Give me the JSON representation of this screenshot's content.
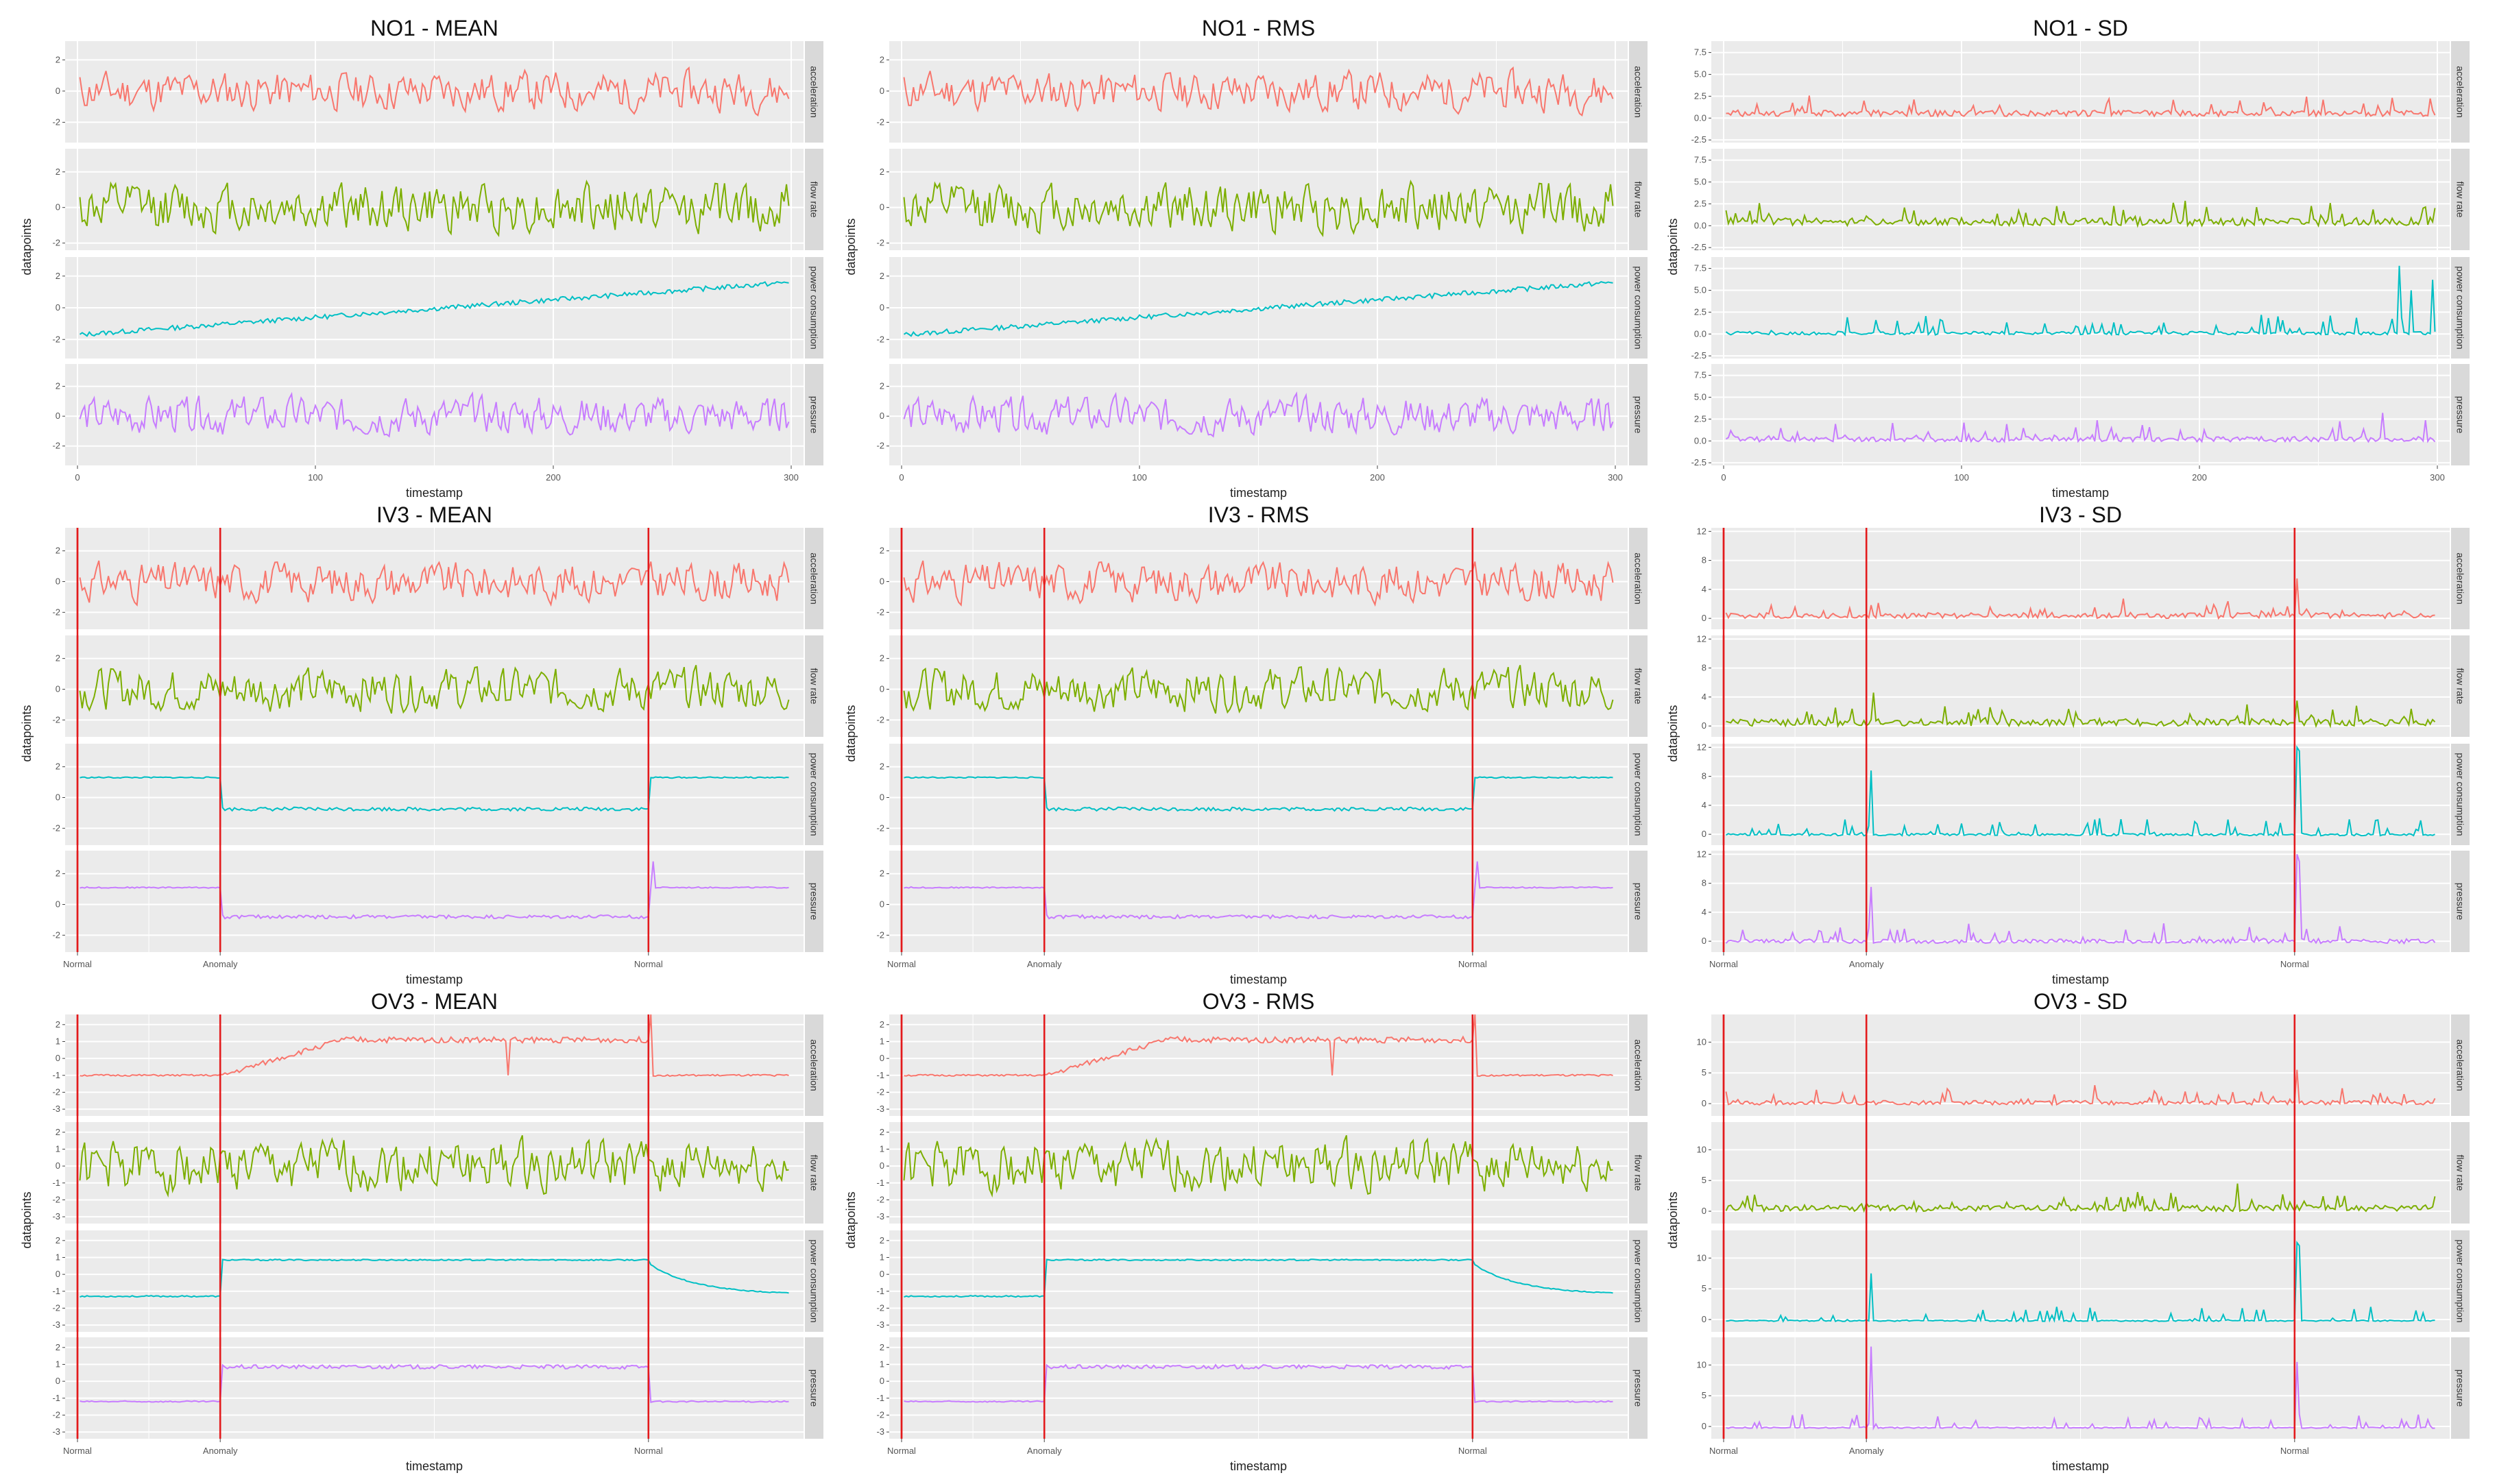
{
  "figure": {
    "xlabel": "timestamp",
    "ylabel": "datapoints",
    "facets": [
      "acceleration",
      "flow rate",
      "power consumption",
      "pressure"
    ],
    "colors": {
      "acceleration": "#F8766D",
      "flow rate": "#7CAE00",
      "power consumption": "#00BFC4",
      "pressure": "#C77CFF",
      "anomaly_line": "#E31A1C",
      "panel_bg": "#EBEBEB",
      "strip_bg": "#D9D9D9",
      "grid": "#FFFFFF"
    }
  },
  "chart_data": [
    {
      "type": "line",
      "title": "NO1 - MEAN",
      "xlabel": "timestamp",
      "ylabel": "datapoints",
      "xlim": [
        0,
        300
      ],
      "xticks": [
        "0",
        "100",
        "200",
        "300"
      ],
      "facet_ylims": [
        [
          -3.3,
          3.2
        ],
        [
          -2.4,
          3.3
        ],
        [
          -3.2,
          3.2
        ],
        [
          -3.3,
          3.5
        ]
      ],
      "facet_yticks": [
        [
          "-2",
          "0",
          "2"
        ],
        [
          "-2",
          "0",
          "2"
        ],
        [
          "-2",
          "0",
          "2"
        ],
        [
          "-2",
          "0",
          "2"
        ]
      ],
      "series": [
        {
          "name": "acceleration",
          "pattern": "noise",
          "amp": 1.0,
          "base": 0,
          "values_seed": 11
        },
        {
          "name": "flow rate",
          "pattern": "noise",
          "amp": 1.1,
          "base": 0,
          "values_seed": 12
        },
        {
          "name": "power consumption",
          "pattern": "trend",
          "y_start": -1.7,
          "y_end": 1.6,
          "values_seed": 13
        },
        {
          "name": "pressure",
          "pattern": "noise",
          "amp": 1.0,
          "base": 0,
          "values_seed": 14
        }
      ]
    },
    {
      "type": "line",
      "title": "NO1 - RMS",
      "xlabel": "timestamp",
      "ylabel": "datapoints",
      "xlim": [
        0,
        300
      ],
      "xticks": [
        "0",
        "100",
        "200",
        "300"
      ],
      "facet_ylims": [
        [
          -3.3,
          3.2
        ],
        [
          -2.4,
          3.3
        ],
        [
          -3.2,
          3.2
        ],
        [
          -3.3,
          3.5
        ]
      ],
      "facet_yticks": [
        [
          "-2",
          "0",
          "2"
        ],
        [
          "-2",
          "0",
          "2"
        ],
        [
          "-2",
          "0",
          "2"
        ],
        [
          "-2",
          "0",
          "2"
        ]
      ],
      "series": [
        {
          "name": "acceleration",
          "pattern": "noise",
          "amp": 1.0,
          "base": 0,
          "values_seed": 11
        },
        {
          "name": "flow rate",
          "pattern": "noise",
          "amp": 1.1,
          "base": 0,
          "values_seed": 12
        },
        {
          "name": "power consumption",
          "pattern": "trend",
          "y_start": -1.7,
          "y_end": 1.6,
          "values_seed": 13
        },
        {
          "name": "pressure",
          "pattern": "noise",
          "amp": 1.0,
          "base": 0,
          "values_seed": 14
        }
      ]
    },
    {
      "type": "line",
      "title": "NO1 - SD",
      "xlabel": "timestamp",
      "ylabel": "datapoints",
      "xlim": [
        0,
        300
      ],
      "xticks": [
        "0",
        "100",
        "200",
        "300"
      ],
      "facet_ylims": [
        [
          -2.8,
          8.8
        ],
        [
          -2.8,
          8.8
        ],
        [
          -2.8,
          8.8
        ],
        [
          -2.8,
          8.8
        ]
      ],
      "facet_yticks": [
        [
          "-2.5",
          "0.0",
          "2.5",
          "5.0",
          "7.5"
        ],
        [
          "-2.5",
          "0.0",
          "2.5",
          "5.0",
          "7.5"
        ],
        [
          "-2.5",
          "0.0",
          "2.5",
          "5.0",
          "7.5"
        ],
        [
          "-2.5",
          "0.0",
          "2.5",
          "5.0",
          "7.5"
        ]
      ],
      "series": [
        {
          "name": "acceleration",
          "pattern": "sd",
          "amp": 0.7,
          "base": 0.5,
          "values_seed": 21
        },
        {
          "name": "flow rate",
          "pattern": "sd",
          "amp": 0.9,
          "base": 0.3,
          "values_seed": 22
        },
        {
          "name": "power consumption",
          "pattern": "sd",
          "amp": 0.4,
          "base": 0.2,
          "values_seed": 23,
          "spikes": [
            [
              283,
              7.8
            ],
            [
              288,
              5.0
            ],
            [
              297,
              6.2
            ]
          ]
        },
        {
          "name": "pressure",
          "pattern": "sd",
          "amp": 0.6,
          "base": 0.2,
          "values_seed": 24,
          "spikes": [
            [
              276,
              3.2
            ]
          ]
        }
      ]
    },
    {
      "type": "line",
      "title": "IV3 - MEAN",
      "xlabel": "timestamp",
      "ylabel": "datapoints",
      "xlim": [
        0,
        300
      ],
      "xticks": [
        "Normal",
        "Anomaly",
        "Normal"
      ],
      "xtick_values": [
        0,
        60,
        240
      ],
      "anomaly_lines": [
        0,
        60,
        240
      ],
      "facet_ylims": [
        [
          -3.1,
          3.5
        ],
        [
          -3.1,
          3.5
        ],
        [
          -3.1,
          3.5
        ],
        [
          -3.1,
          3.5
        ]
      ],
      "facet_yticks": [
        [
          "-2",
          "0",
          "2"
        ],
        [
          "-2",
          "0",
          "2"
        ],
        [
          "-2",
          "0",
          "2"
        ],
        [
          "-2",
          "0",
          "2"
        ]
      ],
      "series": [
        {
          "name": "acceleration",
          "pattern": "noise",
          "amp": 1.0,
          "base": 0,
          "values_seed": 31
        },
        {
          "name": "flow rate",
          "pattern": "noise",
          "amp": 1.1,
          "base": 0,
          "values_seed": 32
        },
        {
          "name": "power consumption",
          "pattern": "step",
          "levels": [
            1.3,
            -0.75,
            1.3
          ],
          "values_seed": 33
        },
        {
          "name": "pressure",
          "pattern": "step",
          "levels": [
            1.1,
            -0.8,
            1.1
          ],
          "values_seed": 34,
          "spikes": [
            [
              241,
              2.8
            ]
          ]
        }
      ]
    },
    {
      "type": "line",
      "title": "IV3 - RMS",
      "xlabel": "timestamp",
      "ylabel": "datapoints",
      "xlim": [
        0,
        300
      ],
      "xticks": [
        "Normal",
        "Anomaly",
        "Normal"
      ],
      "xtick_values": [
        0,
        60,
        240
      ],
      "anomaly_lines": [
        0,
        60,
        240
      ],
      "facet_ylims": [
        [
          -3.1,
          3.5
        ],
        [
          -3.1,
          3.5
        ],
        [
          -3.1,
          3.5
        ],
        [
          -3.1,
          3.5
        ]
      ],
      "facet_yticks": [
        [
          "-2",
          "0",
          "2"
        ],
        [
          "-2",
          "0",
          "2"
        ],
        [
          "-2",
          "0",
          "2"
        ],
        [
          "-2",
          "0",
          "2"
        ]
      ],
      "series": [
        {
          "name": "acceleration",
          "pattern": "noise",
          "amp": 1.0,
          "base": 0,
          "values_seed": 31
        },
        {
          "name": "flow rate",
          "pattern": "noise",
          "amp": 1.1,
          "base": 0,
          "values_seed": 32
        },
        {
          "name": "power consumption",
          "pattern": "step",
          "levels": [
            1.3,
            -0.75,
            1.3
          ],
          "values_seed": 33
        },
        {
          "name": "pressure",
          "pattern": "step",
          "levels": [
            1.1,
            -0.8,
            1.1
          ],
          "values_seed": 34,
          "spikes": [
            [
              241,
              2.8
            ]
          ]
        }
      ]
    },
    {
      "type": "line",
      "title": "IV3 - SD",
      "xlabel": "timestamp",
      "ylabel": "datapoints",
      "xlim": [
        0,
        300
      ],
      "xticks": [
        "Normal",
        "Anomaly",
        "Normal"
      ],
      "xtick_values": [
        0,
        60,
        240
      ],
      "anomaly_lines": [
        0,
        60,
        240
      ],
      "facet_ylims": [
        [
          -1.5,
          12.5
        ],
        [
          -1.5,
          12.5
        ],
        [
          -1.5,
          12.5
        ],
        [
          -1.5,
          12.5
        ]
      ],
      "facet_yticks": [
        [
          "0",
          "4",
          "8",
          "12"
        ],
        [
          "0",
          "4",
          "8",
          "12"
        ],
        [
          "0",
          "4",
          "8",
          "12"
        ],
        [
          "0",
          "4",
          "8",
          "12"
        ]
      ],
      "series": [
        {
          "name": "acceleration",
          "pattern": "sd",
          "amp": 0.8,
          "base": 0.3,
          "values_seed": 41,
          "spikes": [
            [
              240,
              5.5
            ]
          ]
        },
        {
          "name": "flow rate",
          "pattern": "sd",
          "amp": 1.0,
          "base": 0.3,
          "values_seed": 42,
          "spikes": [
            [
              62,
              4.6
            ],
            [
              240,
              3.5
            ]
          ]
        },
        {
          "name": "power consumption",
          "pattern": "sd",
          "amp": 0.3,
          "base": 0.1,
          "values_seed": 43,
          "spikes": [
            [
              61,
              8.8
            ],
            [
              240,
              12.0
            ],
            [
              241,
              11.5
            ]
          ]
        },
        {
          "name": "pressure",
          "pattern": "sd",
          "amp": 0.6,
          "base": 0.0,
          "values_seed": 44,
          "spikes": [
            [
              61,
              7.5
            ],
            [
              240,
              12.0
            ],
            [
              241,
              11.0
            ]
          ]
        }
      ]
    },
    {
      "type": "line",
      "title": "OV3 - MEAN",
      "xlabel": "timestamp",
      "ylabel": "datapoints",
      "xlim": [
        0,
        300
      ],
      "xticks": [
        "Normal",
        "Anomaly",
        "Normal"
      ],
      "xtick_values": [
        0,
        60,
        240
      ],
      "anomaly_lines": [
        0,
        60,
        240
      ],
      "facet_ylims": [
        [
          -3.4,
          2.6
        ],
        [
          -3.4,
          2.6
        ],
        [
          -3.4,
          2.6
        ],
        [
          -3.4,
          2.6
        ]
      ],
      "facet_yticks": [
        [
          "-3",
          "-2",
          "-1",
          "0",
          "1",
          "2"
        ],
        [
          "-3",
          "-2",
          "-1",
          "0",
          "1",
          "2"
        ],
        [
          "-3",
          "-2",
          "-1",
          "0",
          "1",
          "2"
        ],
        [
          "-3",
          "-2",
          "-1",
          "0",
          "1",
          "2"
        ]
      ],
      "series": [
        {
          "name": "acceleration",
          "pattern": "ramp",
          "levels": [
            -1.0,
            1.1,
            -1.0
          ],
          "values_seed": 51,
          "spikes": [
            [
              240,
              2.6
            ],
            [
              180,
              -1.0
            ]
          ]
        },
        {
          "name": "flow rate",
          "pattern": "noise",
          "amp": 1.2,
          "base": 0,
          "values_seed": 52
        },
        {
          "name": "power consumption",
          "pattern": "decay",
          "levels": [
            -1.3,
            0.85,
            -1.2
          ],
          "values_seed": 53
        },
        {
          "name": "pressure",
          "pattern": "step",
          "levels": [
            -1.2,
            0.85,
            -1.2
          ],
          "values_seed": 54
        }
      ]
    },
    {
      "type": "line",
      "title": "OV3 - RMS",
      "xlabel": "timestamp",
      "ylabel": "datapoints",
      "xlim": [
        0,
        300
      ],
      "xticks": [
        "Normal",
        "Anomaly",
        "Normal"
      ],
      "xtick_values": [
        0,
        60,
        240
      ],
      "anomaly_lines": [
        0,
        60,
        240
      ],
      "facet_ylims": [
        [
          -3.4,
          2.6
        ],
        [
          -3.4,
          2.6
        ],
        [
          -3.4,
          2.6
        ],
        [
          -3.4,
          2.6
        ]
      ],
      "facet_yticks": [
        [
          "-3",
          "-2",
          "-1",
          "0",
          "1",
          "2"
        ],
        [
          "-3",
          "-2",
          "-1",
          "0",
          "1",
          "2"
        ],
        [
          "-3",
          "-2",
          "-1",
          "0",
          "1",
          "2"
        ],
        [
          "-3",
          "-2",
          "-1",
          "0",
          "1",
          "2"
        ]
      ],
      "series": [
        {
          "name": "acceleration",
          "pattern": "ramp",
          "levels": [
            -1.0,
            1.1,
            -1.0
          ],
          "values_seed": 51,
          "spikes": [
            [
              240,
              2.6
            ],
            [
              180,
              -1.0
            ]
          ]
        },
        {
          "name": "flow rate",
          "pattern": "noise",
          "amp": 1.2,
          "base": 0,
          "values_seed": 52
        },
        {
          "name": "power consumption",
          "pattern": "decay",
          "levels": [
            -1.3,
            0.85,
            -1.2
          ],
          "values_seed": 53
        },
        {
          "name": "pressure",
          "pattern": "step",
          "levels": [
            -1.2,
            0.85,
            -1.2
          ],
          "values_seed": 54
        }
      ]
    },
    {
      "type": "line",
      "title": "OV3 - SD",
      "xlabel": "timestamp",
      "ylabel": "datapoints",
      "xlim": [
        0,
        300
      ],
      "xticks": [
        "Normal",
        "Anomaly",
        "Normal"
      ],
      "xtick_values": [
        0,
        60,
        240
      ],
      "anomaly_lines": [
        0,
        60,
        240
      ],
      "facet_ylims": [
        [
          -2.0,
          14.5
        ],
        [
          -2.0,
          14.5
        ],
        [
          -2.0,
          14.5
        ],
        [
          -2.0,
          14.5
        ]
      ],
      "facet_yticks": [
        [
          "0",
          "5",
          "10"
        ],
        [
          "0",
          "5",
          "10"
        ],
        [
          "0",
          "5",
          "10"
        ],
        [
          "0",
          "5",
          "10"
        ]
      ],
      "series": [
        {
          "name": "acceleration",
          "pattern": "sd",
          "amp": 0.7,
          "base": 0.1,
          "values_seed": 61,
          "spikes": [
            [
              240,
              5.5
            ],
            [
              155,
              3.0
            ]
          ]
        },
        {
          "name": "flow rate",
          "pattern": "sd",
          "amp": 1.0,
          "base": 0.3,
          "values_seed": 62,
          "spikes": [
            [
              215,
              4.5
            ]
          ]
        },
        {
          "name": "power consumption",
          "pattern": "sd",
          "amp": 0.2,
          "base": 0.0,
          "values_seed": 63,
          "spikes": [
            [
              61,
              7.5
            ],
            [
              240,
              12.5
            ],
            [
              241,
              12.0
            ]
          ]
        },
        {
          "name": "pressure",
          "pattern": "sd",
          "amp": 0.2,
          "base": 0.0,
          "values_seed": 64,
          "spikes": [
            [
              61,
              13.0
            ],
            [
              240,
              10.5
            ]
          ]
        }
      ]
    }
  ]
}
